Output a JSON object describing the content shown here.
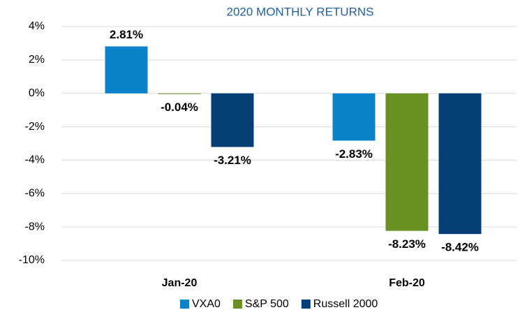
{
  "chart_data": {
    "type": "bar",
    "title": "2020 MONTHLY RETURNS",
    "categories": [
      "Jan-20",
      "Feb-20"
    ],
    "series": [
      {
        "name": "VXA0",
        "color": "#0b83c9",
        "values": [
          2.81,
          -2.83
        ],
        "value_labels": [
          "2.81%",
          "-2.83%"
        ]
      },
      {
        "name": "S&P 500",
        "color": "#6a8f23",
        "values": [
          -0.04,
          -8.23
        ],
        "value_labels": [
          "-0.04%",
          "-8.23%"
        ]
      },
      {
        "name": "Russell 2000",
        "color": "#053f75",
        "values": [
          -3.21,
          -8.42
        ],
        "value_labels": [
          "-3.21%",
          "-8.42%"
        ]
      }
    ],
    "ylim": [
      -10,
      4
    ],
    "yticks": [
      {
        "value": -10,
        "label": "-10%"
      },
      {
        "value": -8,
        "label": "-8%"
      },
      {
        "value": -6,
        "label": "-6%"
      },
      {
        "value": -4,
        "label": "-4%"
      },
      {
        "value": -2,
        "label": "-2%"
      },
      {
        "value": 0,
        "label": "0%"
      },
      {
        "value": 2,
        "label": "2%"
      },
      {
        "value": 4,
        "label": "4%"
      }
    ],
    "grid": true
  }
}
